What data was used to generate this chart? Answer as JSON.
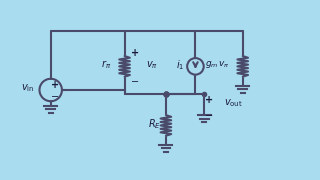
{
  "bg_color": "#aadcef",
  "line_color": "#4a4a6a",
  "line_width": 1.5,
  "text_color": "#1a1a3a",
  "figsize": [
    3.2,
    1.8
  ],
  "dpi": 100,
  "labels": {
    "vin": [
      "v",
      "in"
    ],
    "r_pi": [
      "r",
      "π"
    ],
    "v_pi_top": "+",
    "v_pi_bot": "–",
    "v_pi": [
      "v",
      "π"
    ],
    "i1": [
      "i",
      "1"
    ],
    "gm_vpi": [
      "g",
      "m",
      "v",
      "π"
    ],
    "RE": [
      "R",
      "E"
    ],
    "vout_top": "+",
    "vout_bot": "–",
    "vout": [
      "v",
      "out"
    ]
  }
}
